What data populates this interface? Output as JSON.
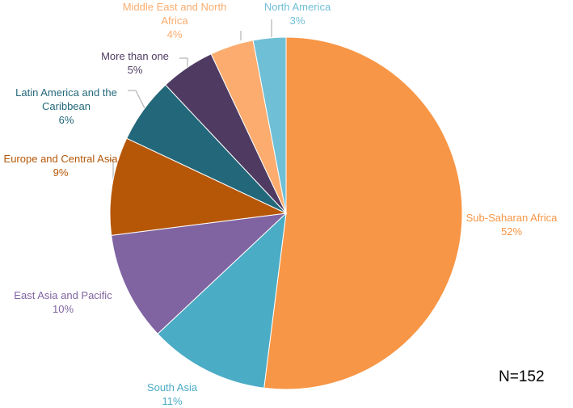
{
  "chart_data": {
    "type": "pie",
    "categories": [
      "Sub-Saharan Africa",
      "South Asia",
      "East Asia and Pacific",
      "Europe and Central Asia",
      "Latin America and the Caribbean",
      "More than one",
      "Middle East and North Africa",
      "North America"
    ],
    "values": [
      52,
      11,
      10,
      9,
      6,
      5,
      4,
      3
    ],
    "value_labels": [
      "52%",
      "11%",
      "10%",
      "9%",
      "6%",
      "5%",
      "4%",
      "3%"
    ],
    "colors": [
      "#f79646",
      "#4bacc6",
      "#8064a2",
      "#b65708",
      "#23687a",
      "#4f3b62",
      "#fbac6e",
      "#6fbfd6"
    ],
    "annotation": "N=152"
  }
}
